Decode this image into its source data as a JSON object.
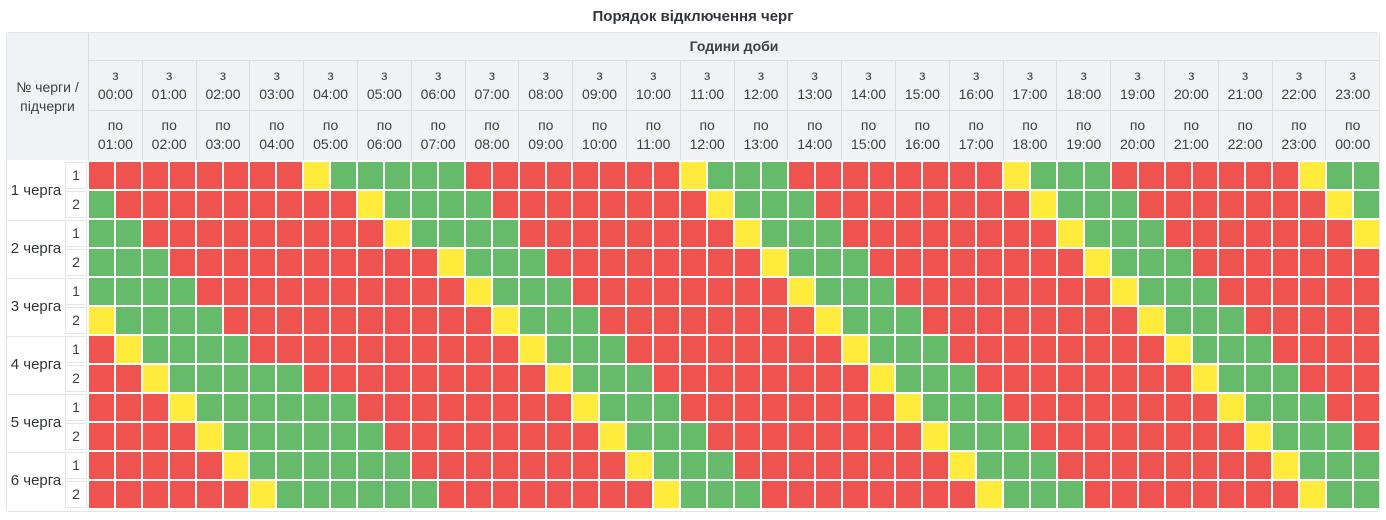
{
  "header": {
    "corner": "№ черги / підчерги",
    "from_label": "з",
    "to_label": "по"
  },
  "colors": {
    "R": "#EF5350",
    "G": "#66BB6A",
    "Y": "#FFEB3B"
  },
  "legend": {
    "R": "outage-red",
    "G": "power-on-green",
    "Y": "possible-outage-yellow"
  },
  "chart_data": {
    "type": "heatmap",
    "title": "Порядок відключення черг",
    "x_axis_title": "Години доби",
    "resolution_minutes": 30,
    "x_categories_from": [
      "00:00",
      "01:00",
      "02:00",
      "03:00",
      "04:00",
      "05:00",
      "06:00",
      "07:00",
      "08:00",
      "09:00",
      "10:00",
      "11:00",
      "12:00",
      "13:00",
      "14:00",
      "15:00",
      "16:00",
      "17:00",
      "18:00",
      "19:00",
      "20:00",
      "21:00",
      "22:00",
      "23:00"
    ],
    "x_categories_to": [
      "01:00",
      "02:00",
      "03:00",
      "04:00",
      "05:00",
      "06:00",
      "07:00",
      "08:00",
      "09:00",
      "10:00",
      "11:00",
      "12:00",
      "13:00",
      "14:00",
      "15:00",
      "16:00",
      "17:00",
      "18:00",
      "19:00",
      "20:00",
      "21:00",
      "22:00",
      "23:00",
      "00:00"
    ],
    "rows": [
      {
        "queue": "1 черга",
        "subqueue": "1",
        "slots": "RRRRRRRRYGGGGGRRRRRRRRYGGGRRRRRRRRYGGGRRRRRRRYGG"
      },
      {
        "queue": "1 черга",
        "subqueue": "2",
        "slots": "GRRRRRRRRRYGGGGRRRRRRRRYGGGRRRRRRRRYGGGRRRRRRRYG"
      },
      {
        "queue": "2 черга",
        "subqueue": "1",
        "slots": "GGRRRRRRRRRYGGGGRRRRRRRRYGGGRRRRRRRRYGGGRRRRRRRY"
      },
      {
        "queue": "2 черга",
        "subqueue": "2",
        "slots": "GGGRRRRRRRRRRYGGGRRRRRRRRYGGGRRRRRRRRYGGGRRRRRRR"
      },
      {
        "queue": "3 черга",
        "subqueue": "1",
        "slots": "GGGGRRRRRRRRRRYGGGRRRRRRRRYGGGRRRRRRRRYGGGRRRRRR"
      },
      {
        "queue": "3 черга",
        "subqueue": "2",
        "slots": "YGGGGRRRRRRRRRRYGGGRRRRRRRRYGGGRRRRRRRRYGGGRRRRR"
      },
      {
        "queue": "4 черга",
        "subqueue": "1",
        "slots": "RYGGGGRRRRRRRRRRYGGGRRRRRRRRYGGGRRRRRRRRYGGGRRRR"
      },
      {
        "queue": "4 черга",
        "subqueue": "2",
        "slots": "RRYGGGGGRRRRRRRRRYGGGRRRRRRRRYGGGRRRRRRRRYGGGRRR"
      },
      {
        "queue": "5 черга",
        "subqueue": "1",
        "slots": "RRRYGGGGGGRRRRRRRRYGGGRRRRRRRRYGGGRRRRRRRRYGGGRR"
      },
      {
        "queue": "5 черга",
        "subqueue": "2",
        "slots": "RRRRYGGGGGGRRRRRRRRYGGGRRRRRRRRYGGGRRRRRRRRYGGGR"
      },
      {
        "queue": "6 черга",
        "subqueue": "1",
        "slots": "RRRRRYGGGGGGRRRRRRRRYGGGRRRRRRRRYGGGRRRRRRRRYGGG"
      },
      {
        "queue": "6 черга",
        "subqueue": "2",
        "slots": "RRRRRRYGGGGGGRRRRRRRRYGGGRRRRRRRRYGGGRRRRRRRRYGG"
      }
    ]
  }
}
